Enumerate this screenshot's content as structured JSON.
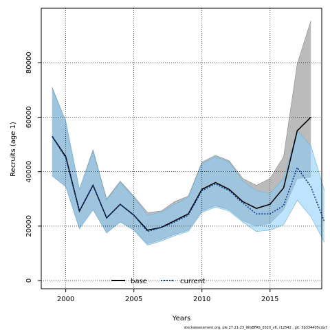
{
  "chart_data": {
    "type": "line",
    "xlabel": "Years",
    "ylabel": "Recruits (age 1)",
    "xlim": [
      1998.2,
      2018.8
    ],
    "ylim": [
      -3000,
      100000
    ],
    "x_ticks": [
      2000,
      2005,
      2010,
      2015
    ],
    "x_tick_labels": [
      "2000",
      "2005",
      "2010",
      "2015"
    ],
    "y_ticks": [
      0,
      20000,
      40000,
      60000,
      80000
    ],
    "y_tick_labels": [
      "0",
      "20000",
      "40000",
      "60000",
      "80000"
    ],
    "grid": true,
    "legend_position": "bottom-center",
    "footnote": "stockassessment.org, ple.27.21-23_WGBFAS_2020_v6, r12542 , git: 5b334405cda7",
    "x": [
      1999,
      2000,
      2001,
      2002,
      2003,
      2004,
      2005,
      2006,
      2007,
      2008,
      2009,
      2010,
      2011,
      2012,
      2013,
      2014,
      2015,
      2016,
      2017,
      2018,
      2019
    ],
    "series": [
      {
        "name": "base",
        "color": "#000000",
        "line_style": "solid",
        "band_color": "#bbbbbb",
        "values": [
          null,
          null,
          null,
          null,
          null,
          null,
          null,
          null,
          null,
          null,
          null,
          null,
          null,
          null,
          null,
          null,
          null,
          null,
          null,
          null,
          null
        ],
        "lower": [
          null,
          null,
          null,
          null,
          null,
          null,
          null,
          null,
          null,
          null,
          null,
          null,
          null,
          null,
          null,
          null,
          null,
          null,
          null,
          null,
          null
        ],
        "upper": [
          null,
          null,
          null,
          null,
          null,
          null,
          null,
          null,
          null,
          null,
          null,
          null,
          null,
          null,
          null,
          null,
          null,
          null,
          null,
          null,
          null
        ]
      },
      {
        "name": "current",
        "color": "#0b3d91",
        "line_style": "dotted",
        "band_color": "#87cefa",
        "values": [
          53000,
          45000,
          25500,
          35000,
          23000,
          28000,
          24000,
          18000,
          19500,
          21500,
          24000,
          33000,
          35500,
          33000,
          28500,
          24500,
          24500,
          27500,
          41500,
          34500,
          21500
        ],
        "lower": [
          38500,
          34500,
          19000,
          26000,
          17500,
          21500,
          18500,
          13000,
          14500,
          16500,
          18000,
          25000,
          27000,
          25500,
          21500,
          18000,
          18500,
          20500,
          29500,
          23500,
          14000
        ],
        "upper": [
          70500,
          58500,
          33500,
          47500,
          29500,
          36000,
          30500,
          24000,
          25000,
          28000,
          30500,
          43000,
          45500,
          43500,
          36500,
          33000,
          32000,
          37500,
          55000,
          49500,
          33000
        ]
      }
    ]
  },
  "base_values_partial": [
    53000,
    45500,
    25500,
    35000,
    23000,
    28000,
    24000,
    18500,
    19500,
    22000,
    24500,
    33500,
    36000,
    33500,
    29000,
    26500,
    28000,
    34000,
    55000,
    60000
  ],
  "base_lower_partial": [
    38500,
    34500,
    19000,
    26000,
    17500,
    21500,
    18500,
    13500,
    15000,
    17000,
    18500,
    25500,
    27500,
    26000,
    22000,
    20000,
    21000,
    26000,
    37500,
    38000
  ],
  "base_upper_partial": [
    71000,
    58500,
    33500,
    48000,
    30000,
    36500,
    31000,
    25000,
    25500,
    29000,
    31000,
    43500,
    46000,
    44000,
    37500,
    35000,
    37500,
    45500,
    79500,
    95500
  ]
}
